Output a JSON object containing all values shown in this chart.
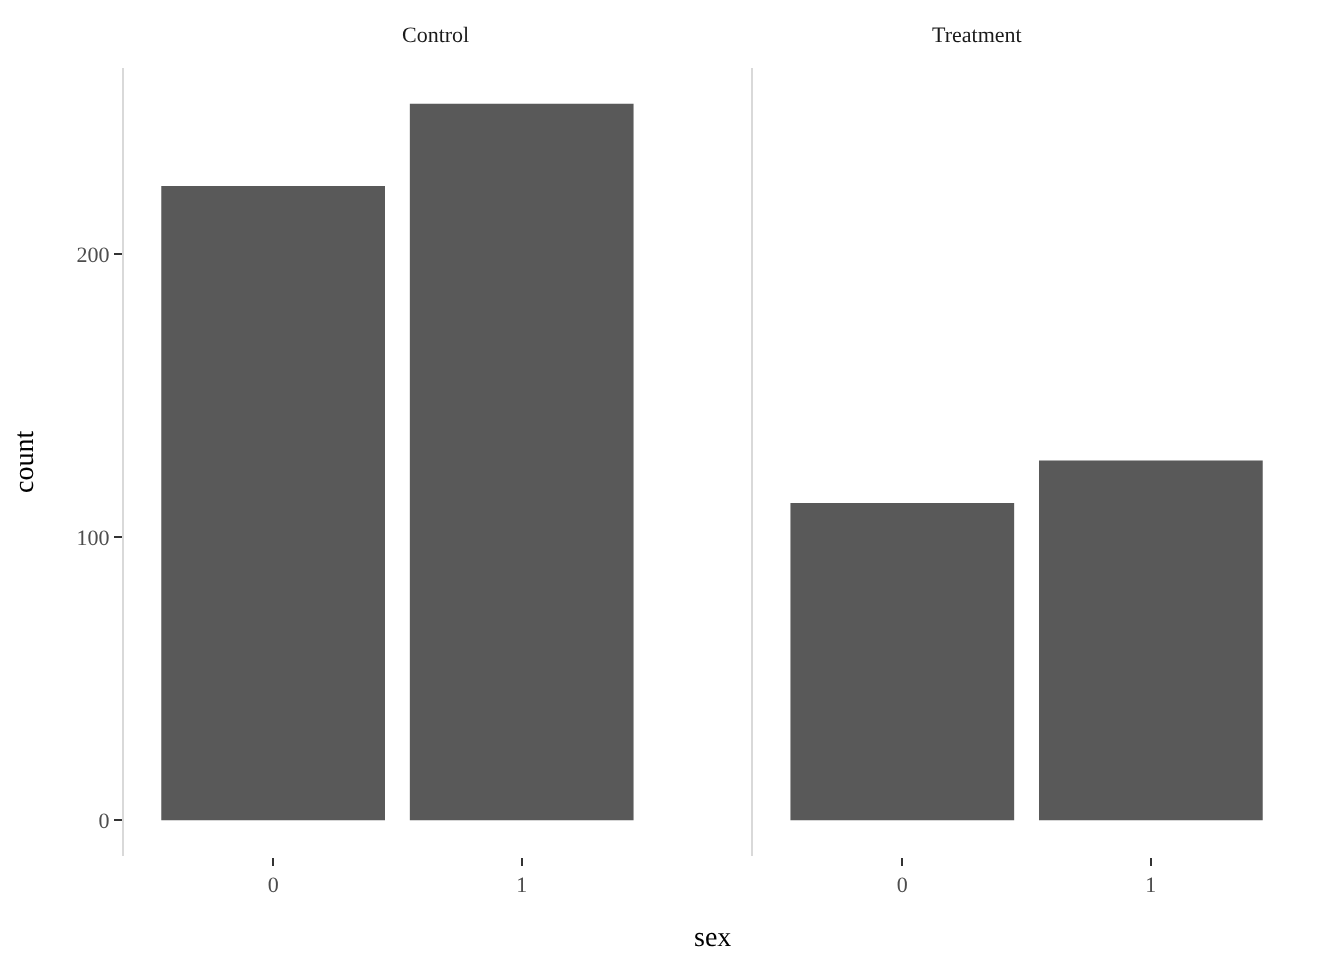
{
  "chart_data": [
    {
      "type": "bar",
      "title": "Control",
      "categories": [
        "0",
        "1"
      ],
      "values": [
        224,
        253
      ],
      "color": "#595959",
      "ylim": [
        -12.65,
        265.65
      ],
      "yticks": [
        0,
        100,
        200
      ],
      "xlabel": "sex",
      "ylabel": "count"
    },
    {
      "type": "bar",
      "title": "Treatment",
      "categories": [
        "0",
        "1"
      ],
      "values": [
        112,
        127
      ],
      "color": "#595959",
      "ylim": [
        -12.65,
        265.65
      ],
      "yticks": [
        0,
        100,
        200
      ],
      "tick_labels": "x"
    }
  ]
}
